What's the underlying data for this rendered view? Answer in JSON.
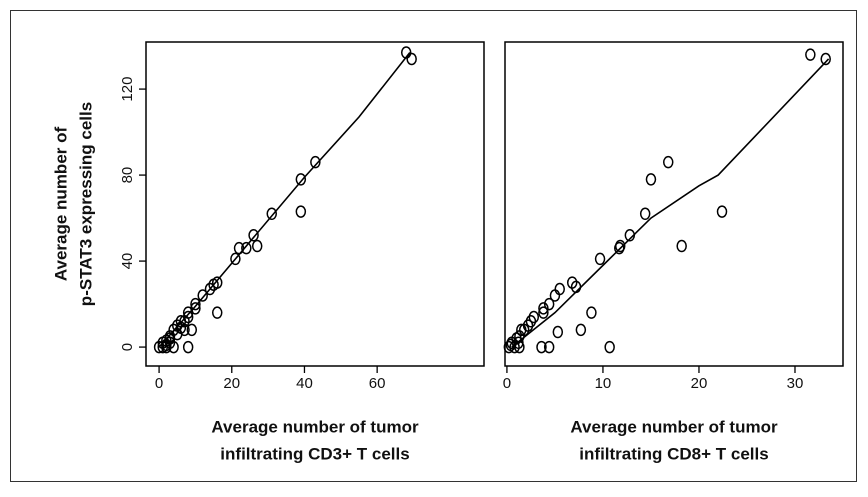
{
  "chart_data": [
    {
      "type": "scatter",
      "xlabel": [
        "Average number of tumor",
        "infiltrating CD3+ T cells"
      ],
      "ylabel": [
        "Average number of",
        "p-STAT3 expressing cells"
      ],
      "x": [
        68,
        69.5,
        43,
        39,
        39,
        31,
        26,
        24,
        27,
        22,
        21,
        16,
        15,
        14,
        12,
        10,
        10,
        8,
        8,
        7,
        6,
        5,
        6,
        4,
        3,
        3,
        2,
        1,
        2,
        1,
        0,
        2,
        4,
        8,
        9,
        16,
        7,
        5,
        3
      ],
      "values": [
        137,
        134,
        86,
        78,
        63,
        62,
        52,
        46,
        47,
        46,
        41,
        30,
        29,
        27,
        24,
        20,
        18,
        16,
        14,
        12,
        12,
        10,
        9,
        8,
        5,
        4,
        3,
        2,
        1,
        0,
        0,
        0,
        0,
        0,
        8,
        16,
        8,
        6,
        2
      ],
      "fit": {
        "x": [
          0,
          10,
          20,
          40,
          55,
          69
        ],
        "y": [
          0,
          19,
          39,
          79,
          107,
          137
        ]
      },
      "xlim": [
        -3.6,
        89.4
      ],
      "xticks": [
        0,
        20,
        40,
        60
      ],
      "ylim": [
        -8.8,
        141.9
      ],
      "yticks": [
        0,
        40,
        80,
        120
      ]
    },
    {
      "type": "scatter",
      "xlabel": [
        "Average number of tumor",
        "infiltrating CD8+ T cells"
      ],
      "x": [
        31.6,
        33.2,
        16.8,
        15,
        22.4,
        14.4,
        12.8,
        11.7,
        18.2,
        11.8,
        9.7,
        6.8,
        7.2,
        5.5,
        5,
        4.4,
        3.8,
        3.8,
        2.8,
        2.5,
        2.2,
        1.8,
        1.5,
        1.3,
        1,
        0.5,
        0.4,
        0.2,
        0.8,
        1.3,
        3.6,
        4.4,
        5.3,
        7.7,
        8.8,
        10.7,
        1.2
      ],
      "values": [
        136,
        134,
        86,
        78,
        63,
        62,
        52,
        46,
        47,
        47,
        41,
        30,
        28,
        27,
        24,
        20,
        18,
        16,
        14,
        12,
        10,
        8,
        8,
        5,
        4,
        2,
        1,
        0,
        0,
        0,
        0,
        0,
        7,
        8,
        16,
        0,
        2
      ],
      "fit": {
        "x": [
          0.5,
          5,
          10,
          15,
          20,
          22,
          33.5
        ],
        "y": [
          0,
          16,
          38,
          60,
          75,
          80,
          134
        ]
      },
      "xlim": [
        -0.2,
        35.0
      ],
      "xticks": [
        0,
        10,
        20,
        30
      ],
      "ylim": [
        -8.8,
        141.9
      ]
    }
  ]
}
